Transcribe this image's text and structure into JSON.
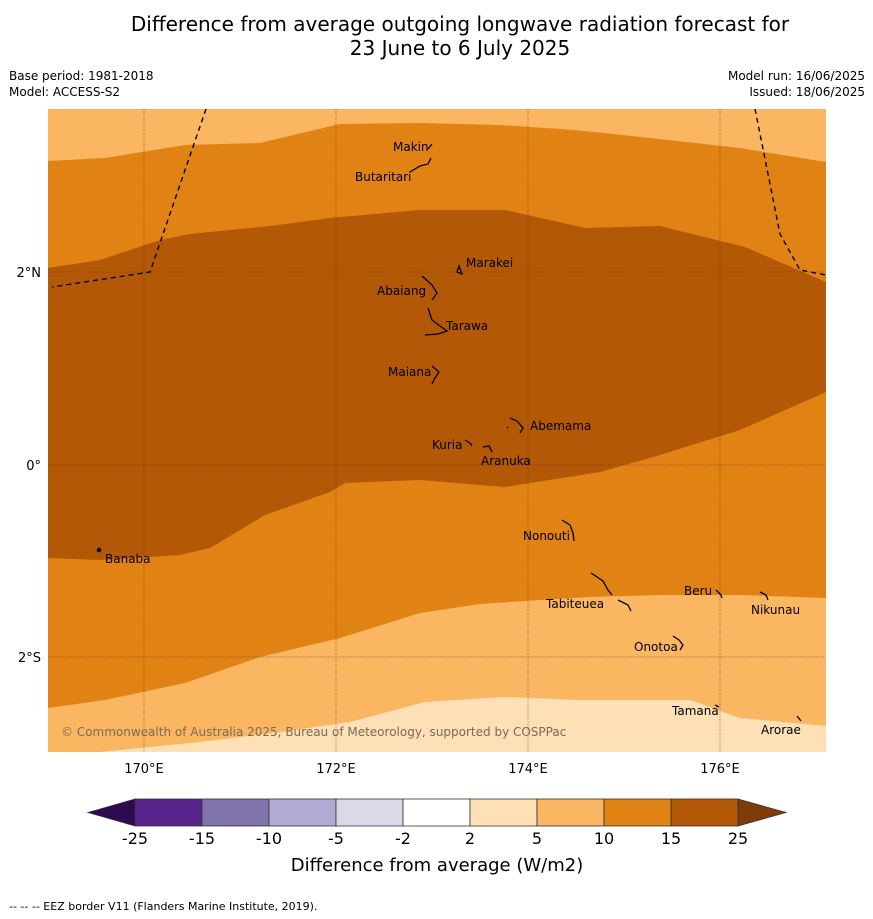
{
  "title_line1": "Difference from average outgoing longwave radiation forecast for",
  "title_line2": "23 June to 6 July 2025",
  "base_period": "Base period: 1981-2018",
  "model": "Model: ACCESS-S2",
  "model_run": "Model run: 16/06/2025",
  "issued": "Issued: 18/06/2025",
  "copyright": "© Commonwealth of Australia 2025, Bureau of Meteorology, supported by COSPPac",
  "lat_labels": [
    "2°N",
    "0°",
    "2°S"
  ],
  "lon_labels": [
    "170°E",
    "172°E",
    "174°E",
    "176°E"
  ],
  "places": [
    {
      "name": "Makin"
    },
    {
      "name": "Butaritari"
    },
    {
      "name": "Marakei"
    },
    {
      "name": "Abaiang"
    },
    {
      "name": "Tarawa"
    },
    {
      "name": "Maiana"
    },
    {
      "name": "Abemama"
    },
    {
      "name": "Kuria"
    },
    {
      "name": "Aranuka"
    },
    {
      "name": "Banaba"
    },
    {
      "name": "Nonouti"
    },
    {
      "name": "Tabiteuea"
    },
    {
      "name": "Beru"
    },
    {
      "name": "Nikunau"
    },
    {
      "name": "Onotoa"
    },
    {
      "name": "Tamana"
    },
    {
      "name": "Arorae"
    }
  ],
  "colorbar": {
    "title": "Difference from average (W/m2)",
    "ticks": [
      "-25",
      "-15",
      "-10",
      "-5",
      "-2",
      "2",
      "5",
      "10",
      "15",
      "25"
    ],
    "colors": [
      "#2d0a52",
      "#56248a",
      "#8073ad",
      "#b1aad2",
      "#d9d9ea",
      "#ffffff",
      "#fde0b6",
      "#fbb662",
      "#e08214",
      "#b35806",
      "#7f3b08"
    ]
  },
  "footer": "--  --  -- EEZ border V11 (Flanders Marine Institute, 2019)."
}
